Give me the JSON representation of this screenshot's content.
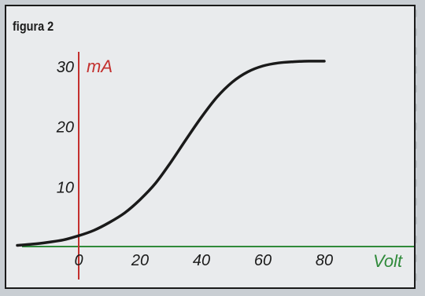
{
  "figure_label": "figura 2",
  "chart_data": {
    "type": "line",
    "title": "",
    "xlabel": "Volt",
    "ylabel": "mA",
    "xlim": [
      -20,
      85
    ],
    "ylim": [
      0,
      33
    ],
    "x_ticks": [
      0,
      20,
      40,
      60,
      80
    ],
    "y_ticks": [
      10,
      20,
      30
    ],
    "y_tick_labels": [
      "10",
      "20",
      "30"
    ],
    "grid": false,
    "series": [
      {
        "x": [
          -20,
          -15,
          -10,
          -5,
          0,
          5,
          10,
          15,
          20,
          25,
          30,
          35,
          40,
          45,
          50,
          55,
          60,
          65,
          70,
          75,
          80
        ],
        "y": [
          0.2,
          0.4,
          0.7,
          1.1,
          1.8,
          2.7,
          4.0,
          5.6,
          7.8,
          10.5,
          14.0,
          17.8,
          21.5,
          24.8,
          27.3,
          29.0,
          30.0,
          30.5,
          30.7,
          30.8,
          30.8
        ]
      }
    ],
    "colors": {
      "curve": "#1a1a1a",
      "y_axis": "#c3302e",
      "x_axis": "#2f8a3a"
    }
  }
}
